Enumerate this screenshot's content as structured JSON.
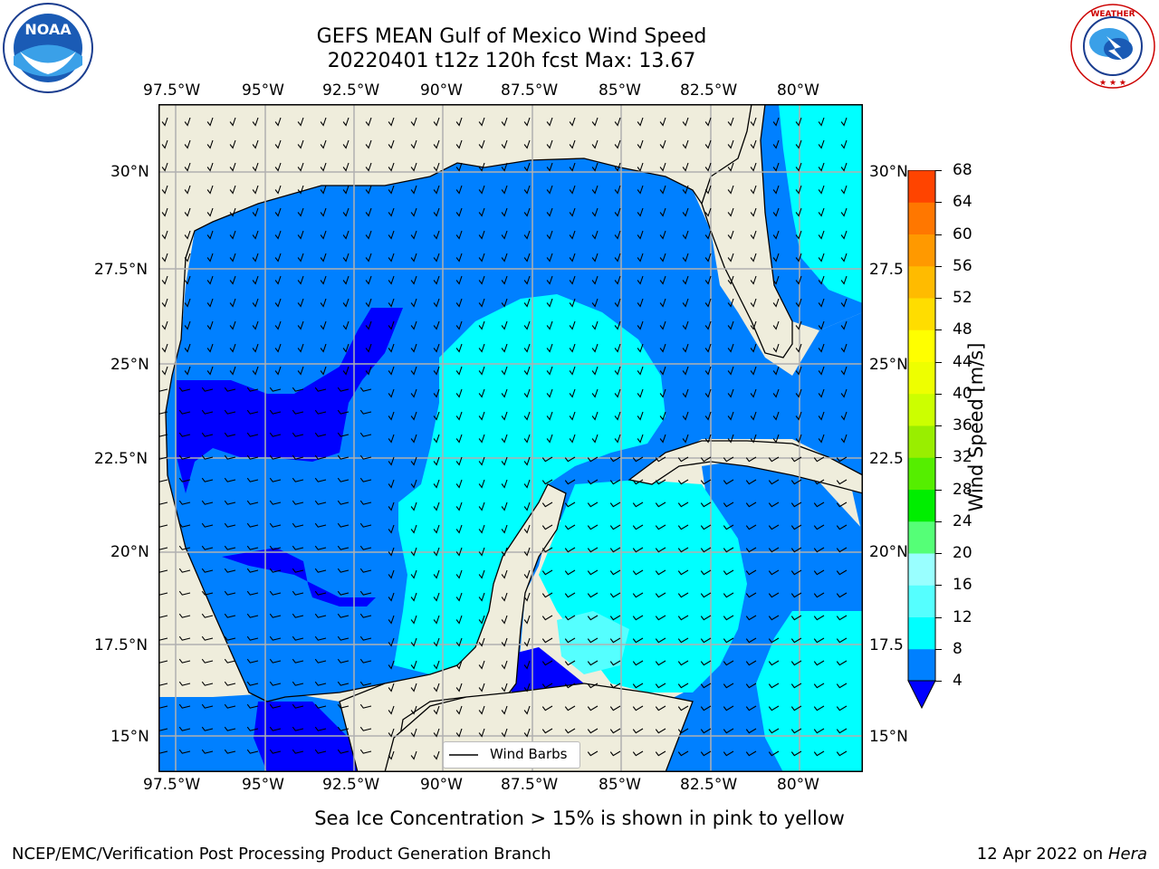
{
  "header": {
    "title_line1": "GEFS MEAN Gulf of Mexico Wind Speed",
    "title_line2": "20220401 t12z 120h fcst   Max: 13.67"
  },
  "logos": {
    "left": {
      "icon": "noaa-logo",
      "center_text": "NOAA",
      "ring_text": "NATIONAL OCEANIC AND ATMOSPHERIC ADMINISTRATION",
      "bottom_text": "U.S. DEPARTMENT OF COMMERCE"
    },
    "right": {
      "icon": "nws-logo",
      "ring_text": "NATIONAL WEATHER SERVICE"
    }
  },
  "map": {
    "longitude_ticks": [
      "97.5°W",
      "95°W",
      "92.5°W",
      "90°W",
      "87.5°W",
      "85°W",
      "82.5°W",
      "80°W"
    ],
    "latitude_ticks": [
      "30°N",
      "27.5°N",
      "25°N",
      "22.5°N",
      "20°N",
      "17.5°N",
      "15°N"
    ],
    "right_latitude_ticks": [
      "30°N",
      "27.5",
      "25°N",
      "22.5",
      "20°N",
      "17.5",
      "15°N"
    ],
    "legend_label": "Wind Barbs",
    "colors": {
      "land": "#efeddc",
      "ocean_4_8": "#0080ff",
      "ocean_8_12": "#00ffff",
      "ocean_12_16": "#55ffff",
      "below_4": "#0000ff",
      "grid": "#b0b0b0"
    }
  },
  "colorbar": {
    "label": "Wind Speed [m/s]",
    "ticks": [
      "4",
      "8",
      "12",
      "16",
      "20",
      "24",
      "28",
      "32",
      "36",
      "40",
      "44",
      "48",
      "52",
      "56",
      "60",
      "64",
      "68"
    ],
    "colors": [
      "#0080ff",
      "#00ffff",
      "#55ffff",
      "#99ffff",
      "#55ff77",
      "#00ee00",
      "#55ee00",
      "#99ee00",
      "#ccff00",
      "#eeff00",
      "#ffff00",
      "#ffdd00",
      "#ffbb00",
      "#ff9900",
      "#ff7700",
      "#ff4400",
      "#ff0000"
    ],
    "extend_color": "#0000ff"
  },
  "annotation": "Sea Ice Concentration > 15% is shown in pink to yellow",
  "footer": {
    "left": "NCEP/EMC/Verification Post Processing Product Generation Branch",
    "right_date": "12 Apr 2022 on ",
    "right_host": "Hera"
  }
}
